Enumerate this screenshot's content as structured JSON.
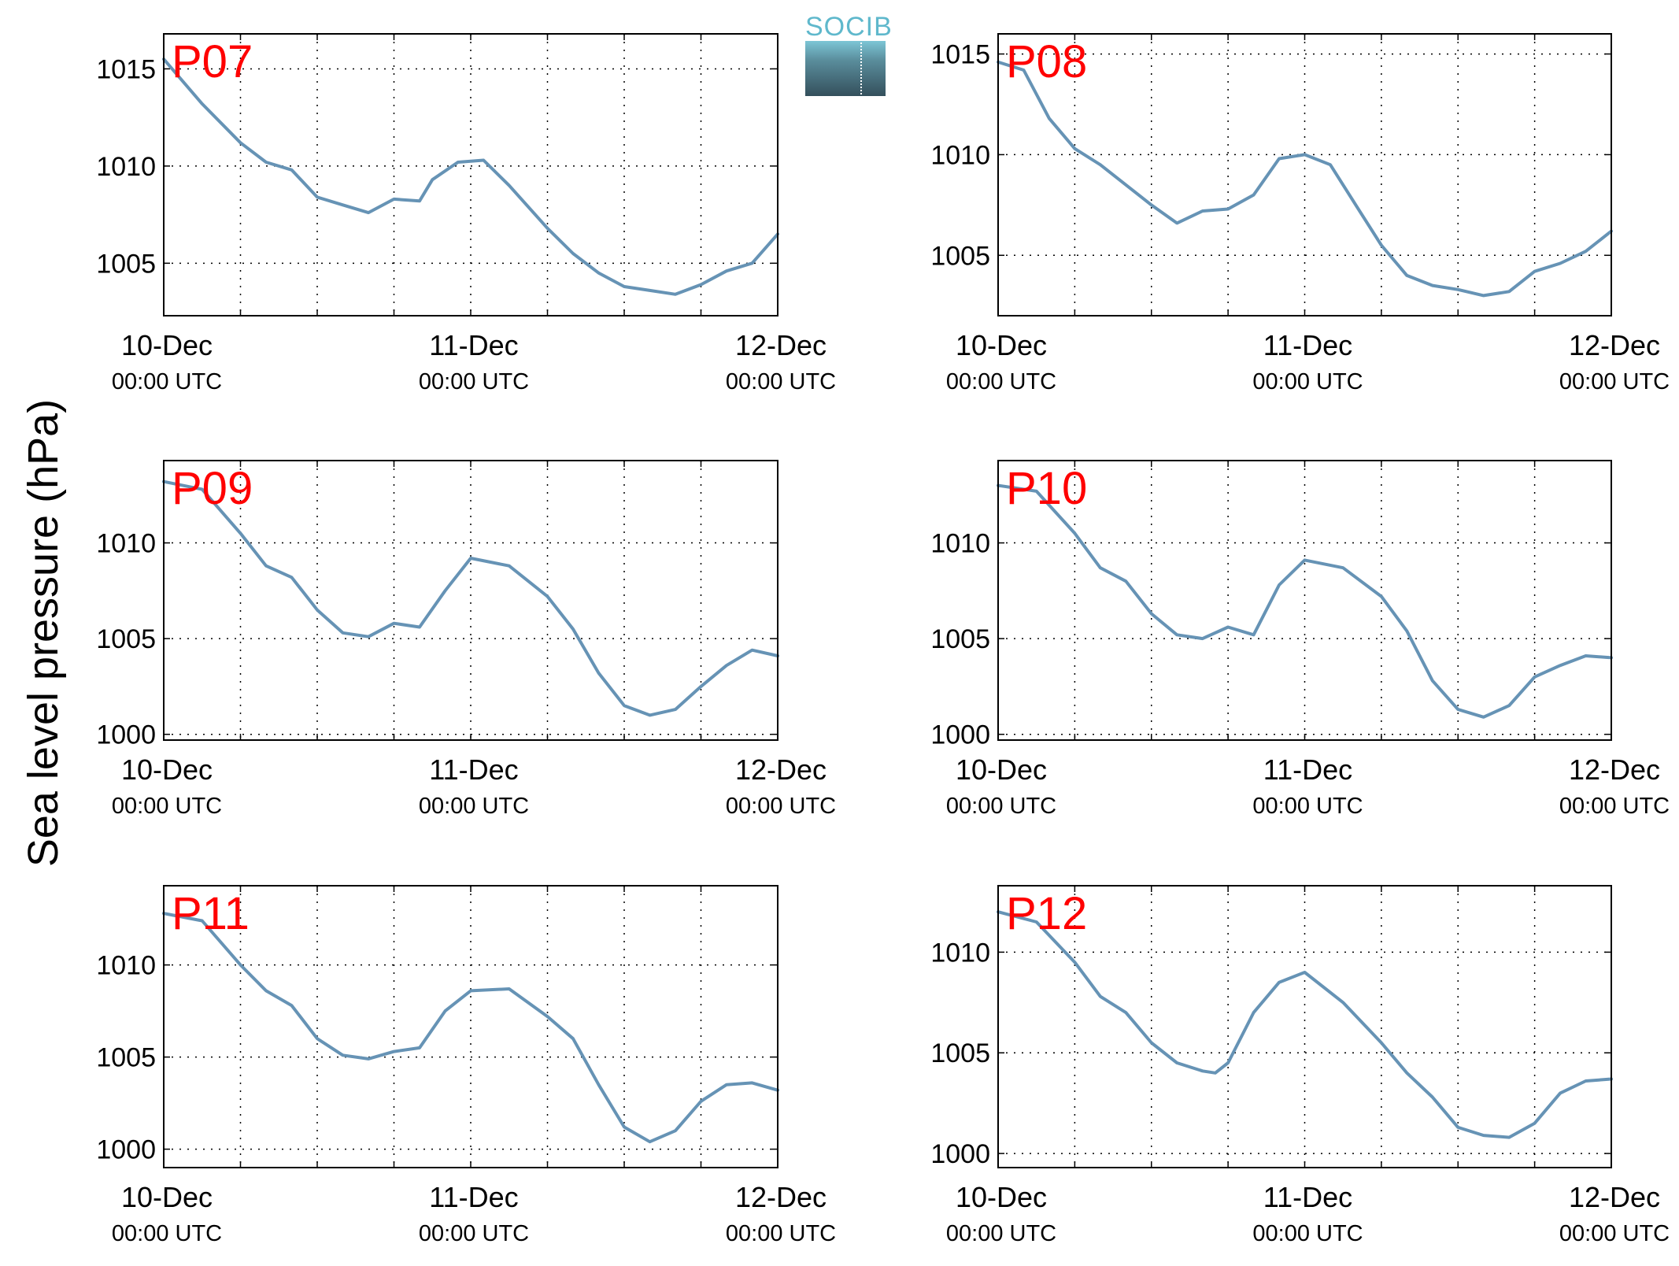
{
  "ylabel": "Sea level pressure (hPa)",
  "logo_text": "SOCIB",
  "colors": {
    "line": "#6693b5",
    "panel_label": "#ff0000",
    "grid": "#000000"
  },
  "x_ticks": [
    {
      "date": "10-Dec",
      "time": "00:00 UTC"
    },
    {
      "date": "11-Dec",
      "time": "00:00 UTC"
    },
    {
      "date": "12-Dec",
      "time": "00:00 UTC"
    }
  ],
  "chart_data": [
    {
      "type": "line",
      "title": "P07",
      "xlim": [
        "2000-12-10T00:00",
        "2000-12-12T00:00"
      ],
      "ylim": [
        1002.3,
        1016.8
      ],
      "yticks": [
        1005,
        1010,
        1015
      ],
      "grid": true,
      "series": [
        {
          "x": [
            "2000-12-10T00:00",
            "2000-12-10T03:00",
            "2000-12-10T06:00",
            "2000-12-10T08:00",
            "2000-12-10T10:00",
            "2000-12-10T12:00",
            "2000-12-10T14:00",
            "2000-12-10T16:00",
            "2000-12-10T18:00",
            "2000-12-10T20:00",
            "2000-12-10T21:00",
            "2000-12-10T23:00",
            "2000-12-11T01:00",
            "2000-12-11T03:00",
            "2000-12-11T06:00",
            "2000-12-11T08:00",
            "2000-12-11T10:00",
            "2000-12-11T12:00",
            "2000-12-11T14:00",
            "2000-12-11T16:00",
            "2000-12-11T18:00",
            "2000-12-11T20:00",
            "2000-12-11T22:00",
            "2000-12-12T00:00"
          ],
          "y": [
            1015.5,
            1013.2,
            1011.2,
            1010.2,
            1009.8,
            1008.4,
            1008.0,
            1007.6,
            1008.3,
            1008.2,
            1009.3,
            1010.2,
            1010.3,
            1009.0,
            1006.8,
            1005.5,
            1004.5,
            1003.8,
            1003.6,
            1003.4,
            1003.9,
            1004.6,
            1005.0,
            1006.5
          ]
        }
      ]
    },
    {
      "type": "line",
      "title": "P08",
      "xlim": [
        "2000-12-10T00:00",
        "2000-12-12T00:00"
      ],
      "ylim": [
        1002.0,
        1016.0
      ],
      "yticks": [
        1005,
        1010,
        1015
      ],
      "grid": true,
      "series": [
        {
          "x": [
            "2000-12-10T00:00",
            "2000-12-10T02:00",
            "2000-12-10T04:00",
            "2000-12-10T06:00",
            "2000-12-10T08:00",
            "2000-12-10T10:00",
            "2000-12-10T12:00",
            "2000-12-10T14:00",
            "2000-12-10T16:00",
            "2000-12-10T18:00",
            "2000-12-10T20:00",
            "2000-12-10T22:00",
            "2000-12-11T00:00",
            "2000-12-11T02:00",
            "2000-12-11T04:00",
            "2000-12-11T06:00",
            "2000-12-11T08:00",
            "2000-12-11T10:00",
            "2000-12-11T12:00",
            "2000-12-11T14:00",
            "2000-12-11T16:00",
            "2000-12-11T18:00",
            "2000-12-11T20:00",
            "2000-12-11T22:00",
            "2000-12-12T00:00"
          ],
          "y": [
            1014.6,
            1014.2,
            1011.8,
            1010.3,
            1009.5,
            1008.5,
            1007.5,
            1006.6,
            1007.2,
            1007.3,
            1008.0,
            1009.8,
            1010.0,
            1009.5,
            1007.5,
            1005.5,
            1004.0,
            1003.5,
            1003.3,
            1003.0,
            1003.2,
            1004.2,
            1004.6,
            1005.2,
            1006.2
          ]
        }
      ]
    },
    {
      "type": "line",
      "title": "P09",
      "xlim": [
        "2000-12-10T00:00",
        "2000-12-12T00:00"
      ],
      "ylim": [
        999.7,
        1014.3
      ],
      "yticks": [
        1000,
        1005,
        1010
      ],
      "grid": true,
      "series": [
        {
          "x": [
            "2000-12-10T00:00",
            "2000-12-10T03:00",
            "2000-12-10T06:00",
            "2000-12-10T08:00",
            "2000-12-10T10:00",
            "2000-12-10T12:00",
            "2000-12-10T14:00",
            "2000-12-10T16:00",
            "2000-12-10T18:00",
            "2000-12-10T20:00",
            "2000-12-10T22:00",
            "2000-12-11T00:00",
            "2000-12-11T03:00",
            "2000-12-11T06:00",
            "2000-12-11T08:00",
            "2000-12-11T10:00",
            "2000-12-11T12:00",
            "2000-12-11T14:00",
            "2000-12-11T16:00",
            "2000-12-11T18:00",
            "2000-12-11T20:00",
            "2000-12-11T22:00",
            "2000-12-12T00:00"
          ],
          "y": [
            1013.2,
            1012.8,
            1010.5,
            1008.8,
            1008.2,
            1006.5,
            1005.3,
            1005.1,
            1005.8,
            1005.6,
            1007.5,
            1009.2,
            1008.8,
            1007.2,
            1005.5,
            1003.2,
            1001.5,
            1001.0,
            1001.3,
            1002.5,
            1003.6,
            1004.4,
            1004.1
          ]
        }
      ]
    },
    {
      "type": "line",
      "title": "P10",
      "xlim": [
        "2000-12-10T00:00",
        "2000-12-12T00:00"
      ],
      "ylim": [
        999.7,
        1014.3
      ],
      "yticks": [
        1000,
        1005,
        1010
      ],
      "grid": true,
      "series": [
        {
          "x": [
            "2000-12-10T00:00",
            "2000-12-10T03:00",
            "2000-12-10T06:00",
            "2000-12-10T08:00",
            "2000-12-10T10:00",
            "2000-12-10T12:00",
            "2000-12-10T14:00",
            "2000-12-10T16:00",
            "2000-12-10T18:00",
            "2000-12-10T20:00",
            "2000-12-10T22:00",
            "2000-12-11T00:00",
            "2000-12-11T03:00",
            "2000-12-11T06:00",
            "2000-12-11T08:00",
            "2000-12-11T10:00",
            "2000-12-11T12:00",
            "2000-12-11T14:00",
            "2000-12-11T16:00",
            "2000-12-11T18:00",
            "2000-12-11T20:00",
            "2000-12-11T22:00",
            "2000-12-12T00:00"
          ],
          "y": [
            1013.0,
            1012.7,
            1010.5,
            1008.7,
            1008.0,
            1006.3,
            1005.2,
            1005.0,
            1005.6,
            1005.2,
            1007.8,
            1009.1,
            1008.7,
            1007.2,
            1005.4,
            1002.8,
            1001.3,
            1000.9,
            1001.5,
            1003.0,
            1003.6,
            1004.1,
            1004.0
          ]
        }
      ]
    },
    {
      "type": "line",
      "title": "P11",
      "xlim": [
        "2000-12-10T00:00",
        "2000-12-12T00:00"
      ],
      "ylim": [
        999.0,
        1014.3
      ],
      "yticks": [
        1000,
        1005,
        1010
      ],
      "grid": true,
      "series": [
        {
          "x": [
            "2000-12-10T00:00",
            "2000-12-10T03:00",
            "2000-12-10T06:00",
            "2000-12-10T08:00",
            "2000-12-10T10:00",
            "2000-12-10T12:00",
            "2000-12-10T14:00",
            "2000-12-10T16:00",
            "2000-12-10T18:00",
            "2000-12-10T20:00",
            "2000-12-10T22:00",
            "2000-12-11T00:00",
            "2000-12-11T03:00",
            "2000-12-11T06:00",
            "2000-12-11T08:00",
            "2000-12-11T10:00",
            "2000-12-11T12:00",
            "2000-12-11T14:00",
            "2000-12-11T16:00",
            "2000-12-11T18:00",
            "2000-12-11T20:00",
            "2000-12-11T22:00",
            "2000-12-12T00:00"
          ],
          "y": [
            1012.8,
            1012.4,
            1010.0,
            1008.6,
            1007.8,
            1006.0,
            1005.1,
            1004.9,
            1005.3,
            1005.5,
            1007.5,
            1008.6,
            1008.7,
            1007.2,
            1006.0,
            1003.5,
            1001.2,
            1000.4,
            1001.0,
            1002.6,
            1003.5,
            1003.6,
            1003.2
          ]
        }
      ]
    },
    {
      "type": "line",
      "title": "P12",
      "xlim": [
        "2000-12-10T00:00",
        "2000-12-12T00:00"
      ],
      "ylim": [
        999.3,
        1013.3
      ],
      "yticks": [
        1000,
        1005,
        1010
      ],
      "grid": true,
      "series": [
        {
          "x": [
            "2000-12-10T00:00",
            "2000-12-10T03:00",
            "2000-12-10T06:00",
            "2000-12-10T08:00",
            "2000-12-10T10:00",
            "2000-12-10T12:00",
            "2000-12-10T14:00",
            "2000-12-10T16:00",
            "2000-12-10T17:00",
            "2000-12-10T18:00",
            "2000-12-10T20:00",
            "2000-12-10T22:00",
            "2000-12-11T00:00",
            "2000-12-11T03:00",
            "2000-12-11T06:00",
            "2000-12-11T08:00",
            "2000-12-11T10:00",
            "2000-12-11T12:00",
            "2000-12-11T14:00",
            "2000-12-11T16:00",
            "2000-12-11T18:00",
            "2000-12-11T20:00",
            "2000-12-11T22:00",
            "2000-12-12T00:00"
          ],
          "y": [
            1012.0,
            1011.5,
            1009.5,
            1007.8,
            1007.0,
            1005.5,
            1004.5,
            1004.1,
            1004.0,
            1004.5,
            1007.0,
            1008.5,
            1009.0,
            1007.5,
            1005.5,
            1004.0,
            1002.8,
            1001.3,
            1000.9,
            1000.8,
            1001.5,
            1003.0,
            1003.6,
            1003.7
          ]
        }
      ]
    }
  ]
}
